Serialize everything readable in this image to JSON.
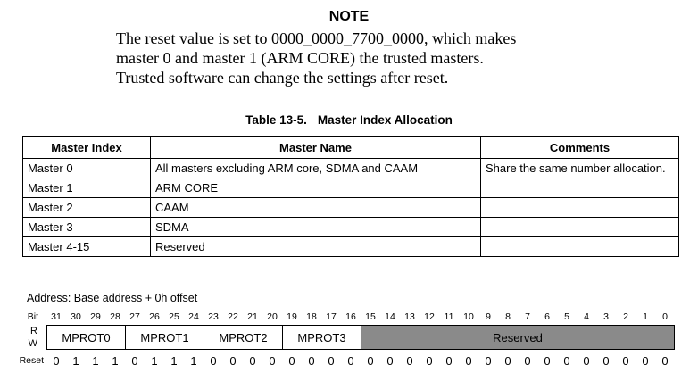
{
  "note": {
    "title": "NOTE",
    "lines": [
      "The reset value is set to 0000_0000_7700_0000, which makes",
      "master 0 and master 1 (ARM CORE) the trusted masters.",
      "Trusted software can change the settings after reset."
    ]
  },
  "table": {
    "caption_label": "Table 13-5.",
    "caption_title": "Master Index Allocation",
    "columns": [
      "Master Index",
      "Master Name",
      "Comments"
    ],
    "rows": [
      [
        "Master 0",
        "All masters excluding ARM core, SDMA and CAAM",
        "Share the same number allocation."
      ],
      [
        "Master 1",
        "ARM CORE",
        ""
      ],
      [
        "Master 2",
        "CAAM",
        ""
      ],
      [
        "Master 3",
        "SDMA",
        ""
      ],
      [
        "Master 4-15",
        "Reserved",
        ""
      ]
    ]
  },
  "register": {
    "address_line": "Address: Base address + 0h offset",
    "bit_label": "Bit",
    "read_label": "R",
    "write_label": "W",
    "reset_label": "Reset",
    "bit_numbers": [
      31,
      30,
      29,
      28,
      27,
      26,
      25,
      24,
      23,
      22,
      21,
      20,
      19,
      18,
      17,
      16,
      15,
      14,
      13,
      12,
      11,
      10,
      9,
      8,
      7,
      6,
      5,
      4,
      3,
      2,
      1,
      0
    ],
    "fields": [
      {
        "name": "MPROT0",
        "bits": 4,
        "reserved": false
      },
      {
        "name": "MPROT1",
        "bits": 4,
        "reserved": false
      },
      {
        "name": "MPROT2",
        "bits": 4,
        "reserved": false
      },
      {
        "name": "MPROT3",
        "bits": 4,
        "reserved": false
      },
      {
        "name": "Reserved",
        "bits": 16,
        "reserved": true
      }
    ],
    "reset_values": [
      0,
      1,
      1,
      1,
      0,
      1,
      1,
      1,
      0,
      0,
      0,
      0,
      0,
      0,
      0,
      0,
      0,
      0,
      0,
      0,
      0,
      0,
      0,
      0,
      0,
      0,
      0,
      0,
      0,
      0,
      0,
      0
    ],
    "reserved_fill": "#8a8a8a"
  }
}
